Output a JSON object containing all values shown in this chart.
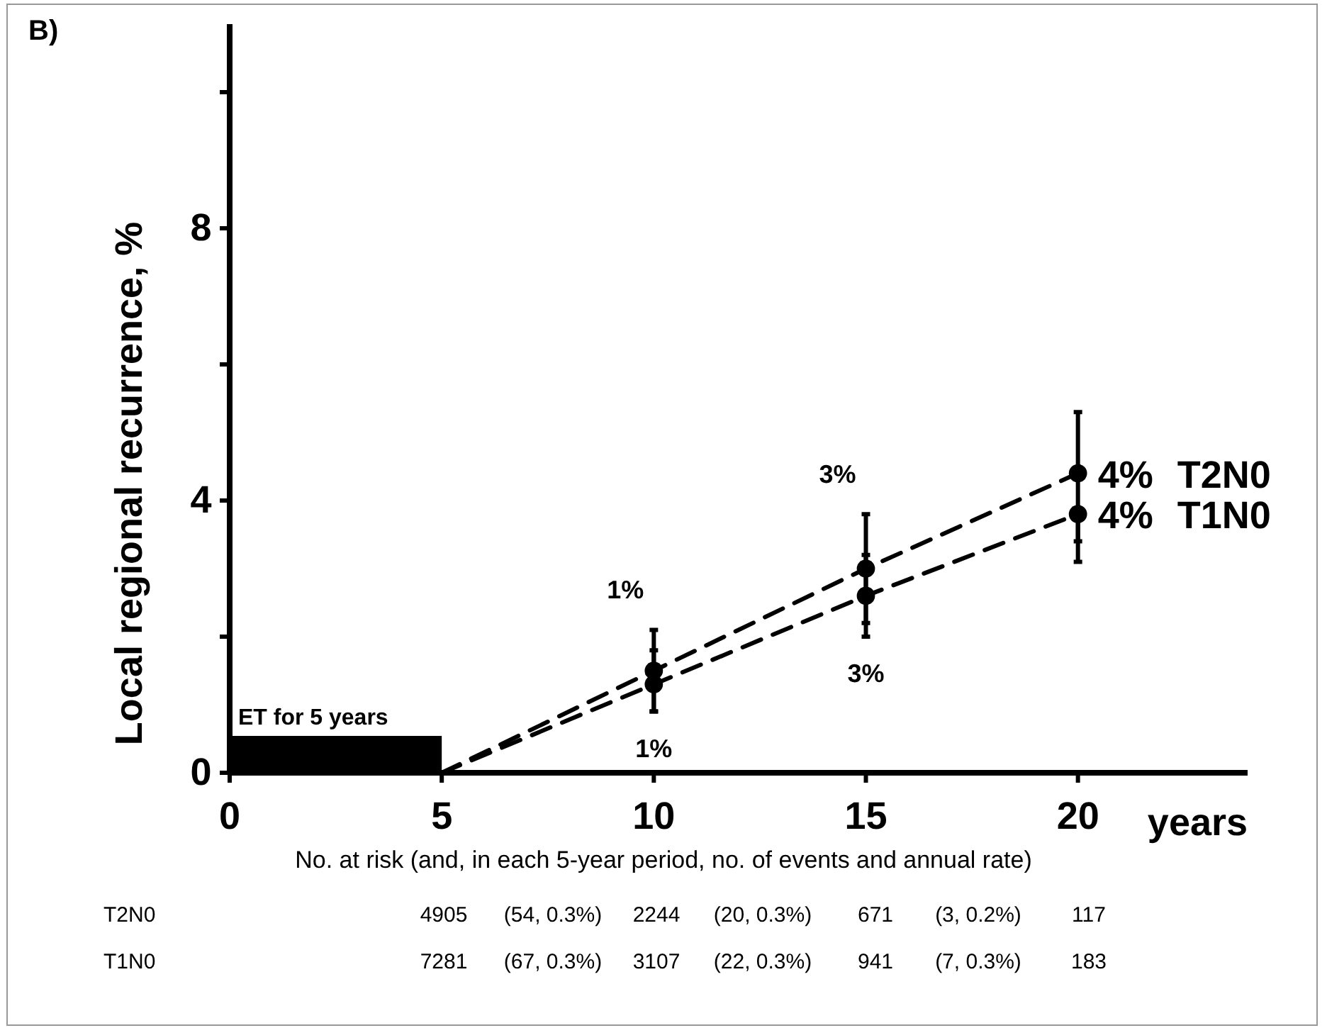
{
  "chart_data": {
    "type": "line",
    "title": "B)",
    "xlabel": "years",
    "ylabel": "Local regional recurrence, %",
    "x": [
      5,
      10,
      15,
      20
    ],
    "xlim": [
      0,
      24
    ],
    "xticks": [
      0,
      5,
      10,
      15,
      20
    ],
    "ylim": [
      0,
      11
    ],
    "yticks": [
      0,
      {
        "value": 2,
        "label": null
      },
      4,
      {
        "value": 6,
        "label": null
      },
      8,
      {
        "value": 10,
        "label": null
      }
    ],
    "series": [
      {
        "name": "T2N0",
        "color": "#000000",
        "values": [
          0,
          1.5,
          3.0,
          4.4
        ],
        "errors": [
          null,
          [
            0.9,
            2.1
          ],
          [
            2.2,
            3.8
          ],
          [
            3.4,
            5.3
          ]
        ],
        "value_labels": [
          null,
          "1%",
          "3%",
          "4%"
        ]
      },
      {
        "name": "T1N0",
        "color": "#000000",
        "values": [
          0,
          1.3,
          2.6,
          3.8
        ],
        "errors": [
          null,
          [
            0.9,
            1.8
          ],
          [
            2.0,
            3.2
          ],
          [
            3.1,
            3.8
          ]
        ],
        "value_labels": [
          null,
          "1%",
          "3%",
          "4%"
        ]
      }
    ],
    "bands": [
      {
        "axis": "x",
        "from": 0,
        "to": 5,
        "label": "ET for 5 years",
        "color": "#000000"
      }
    ],
    "marker": "circle",
    "line_style": "dashed",
    "legend": false,
    "grid": false,
    "annotations": [
      "No. at risk (and, in each 5-year period, no. of events and annual rate)",
      "T2N0",
      "4905",
      "(54, 0.3%)",
      "2244",
      "(20, 0.3%)",
      "671",
      "(3, 0.2%)",
      "117",
      "T1N0",
      "7281",
      "(67, 0.3%)",
      "3107",
      "(22, 0.3%)",
      "941",
      "(7, 0.3%)",
      "183"
    ]
  }
}
